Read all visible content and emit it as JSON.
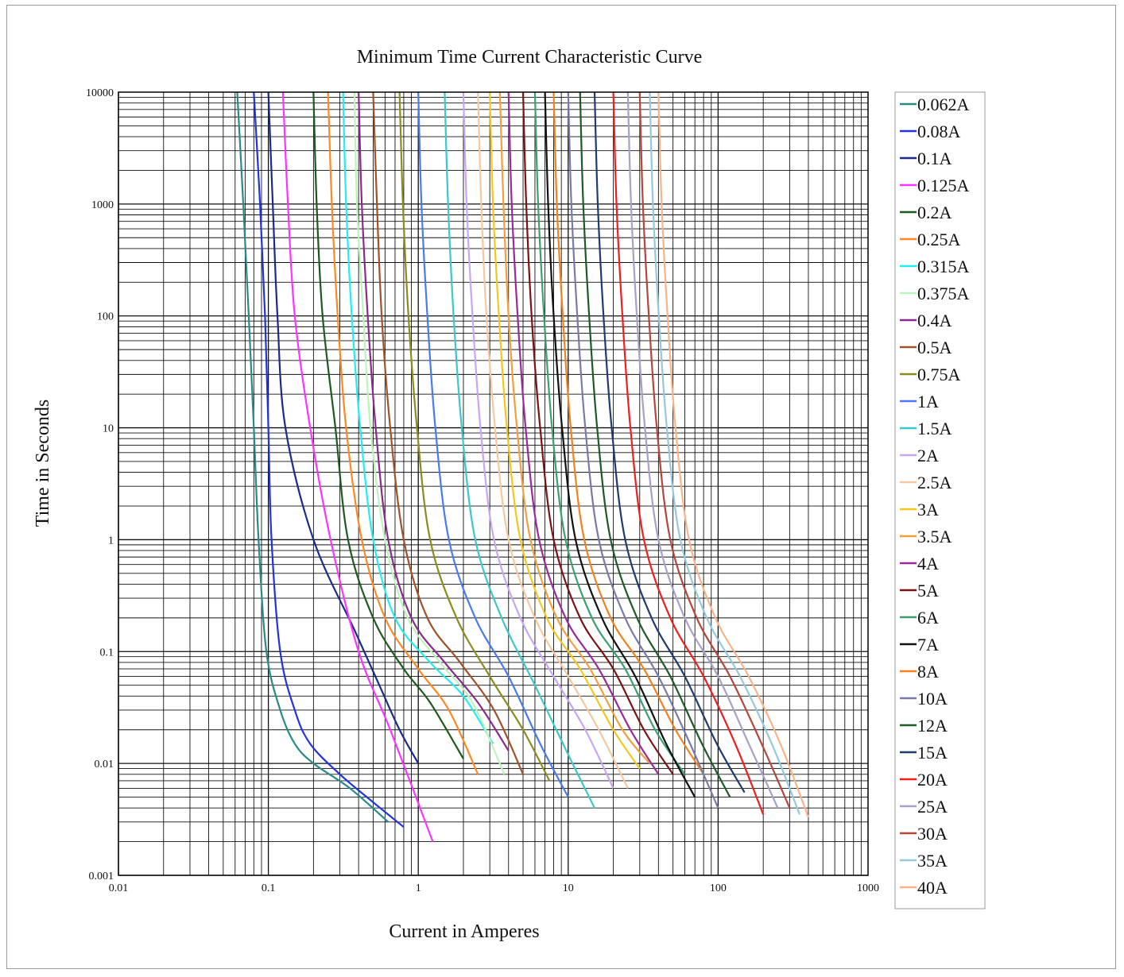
{
  "chart_data": {
    "type": "line",
    "title": "Minimum Time Current Characteristic Curve",
    "xlabel": "Current in Amperes",
    "ylabel": "Time in Seconds",
    "xscale": "log",
    "yscale": "log",
    "xlim": [
      0.01,
      1000
    ],
    "ylim": [
      0.001,
      10000
    ],
    "x_ticks": [
      0.01,
      0.1,
      1,
      10,
      100,
      1000
    ],
    "x_tick_labels": [
      "0.01",
      "0.1",
      "1",
      "10",
      "100",
      "1000"
    ],
    "y_ticks": [
      0.001,
      0.01,
      0.1,
      1,
      10,
      100,
      1000,
      10000
    ],
    "y_tick_labels": [
      "0.001",
      "0.01",
      "0.1",
      "1",
      "10",
      "100",
      "1000",
      "10000"
    ],
    "grid": true,
    "legend_position": "right",
    "series": [
      {
        "name": "0.062A",
        "color": "#2a8a86",
        "points": [
          [
            0.062,
            10000
          ],
          [
            0.068,
            1000
          ],
          [
            0.074,
            100
          ],
          [
            0.08,
            10
          ],
          [
            0.086,
            1
          ],
          [
            0.097,
            0.1
          ],
          [
            0.12,
            0.03
          ],
          [
            0.15,
            0.015
          ],
          [
            0.2,
            0.01
          ],
          [
            0.35,
            0.006
          ],
          [
            0.63,
            0.003
          ]
        ]
      },
      {
        "name": "0.08A",
        "color": "#2233dd",
        "points": [
          [
            0.08,
            10000
          ],
          [
            0.088,
            1000
          ],
          [
            0.095,
            100
          ],
          [
            0.1,
            10
          ],
          [
            0.105,
            1
          ],
          [
            0.12,
            0.1
          ],
          [
            0.15,
            0.03
          ],
          [
            0.19,
            0.015
          ],
          [
            0.3,
            0.008
          ],
          [
            0.5,
            0.0045
          ],
          [
            0.8,
            0.0027
          ]
        ]
      },
      {
        "name": "0.1A",
        "color": "#1c2a8a",
        "points": [
          [
            0.1,
            10000
          ],
          [
            0.107,
            1000
          ],
          [
            0.115,
            100
          ],
          [
            0.13,
            10
          ],
          [
            0.2,
            1
          ],
          [
            0.38,
            0.15
          ],
          [
            0.55,
            0.05
          ],
          [
            0.75,
            0.02
          ],
          [
            1,
            0.01
          ]
        ]
      },
      {
        "name": "0.125A",
        "color": "#ff33ff",
        "points": [
          [
            0.125,
            10000
          ],
          [
            0.135,
            1000
          ],
          [
            0.15,
            100
          ],
          [
            0.19,
            10
          ],
          [
            0.26,
            1
          ],
          [
            0.4,
            0.1
          ],
          [
            0.65,
            0.02
          ],
          [
            1.25,
            0.002
          ]
        ]
      },
      {
        "name": "0.2A",
        "color": "#1e5a1e",
        "points": [
          [
            0.2,
            10000
          ],
          [
            0.21,
            1000
          ],
          [
            0.23,
            100
          ],
          [
            0.28,
            10
          ],
          [
            0.34,
            1
          ],
          [
            0.5,
            0.2
          ],
          [
            0.8,
            0.07
          ],
          [
            1.2,
            0.035
          ],
          [
            2,
            0.011
          ]
        ]
      },
      {
        "name": "0.25A",
        "color": "#ff8822",
        "points": [
          [
            0.25,
            10000
          ],
          [
            0.265,
            1000
          ],
          [
            0.29,
            100
          ],
          [
            0.33,
            10
          ],
          [
            0.42,
            1
          ],
          [
            0.6,
            0.2
          ],
          [
            1,
            0.07
          ],
          [
            1.6,
            0.03
          ],
          [
            2.5,
            0.008
          ]
        ]
      },
      {
        "name": "0.315A",
        "color": "#22eeee",
        "points": [
          [
            0.315,
            10000
          ],
          [
            0.33,
            1000
          ],
          [
            0.36,
            100
          ],
          [
            0.41,
            10
          ],
          [
            0.5,
            1
          ],
          [
            0.7,
            0.2
          ],
          [
            1.2,
            0.08
          ],
          [
            2,
            0.04
          ],
          [
            3.15,
            0.015
          ]
        ]
      },
      {
        "name": "0.375A",
        "color": "#bff2bf",
        "points": [
          [
            0.375,
            10000
          ],
          [
            0.39,
            1000
          ],
          [
            0.43,
            100
          ],
          [
            0.48,
            10
          ],
          [
            0.6,
            1
          ],
          [
            0.85,
            0.2
          ],
          [
            1.4,
            0.08
          ],
          [
            2.3,
            0.035
          ],
          [
            3.75,
            0.008
          ]
        ]
      },
      {
        "name": "0.4A",
        "color": "#8c2a8c",
        "points": [
          [
            0.4,
            10000
          ],
          [
            0.42,
            1000
          ],
          [
            0.46,
            100
          ],
          [
            0.52,
            10
          ],
          [
            0.63,
            1
          ],
          [
            0.9,
            0.2
          ],
          [
            1.5,
            0.08
          ],
          [
            2.5,
            0.035
          ],
          [
            4,
            0.013
          ]
        ]
      },
      {
        "name": "0.5A",
        "color": "#a0522d",
        "points": [
          [
            0.5,
            10000
          ],
          [
            0.53,
            1000
          ],
          [
            0.57,
            100
          ],
          [
            0.65,
            10
          ],
          [
            0.8,
            1
          ],
          [
            1.15,
            0.2
          ],
          [
            1.9,
            0.08
          ],
          [
            3.2,
            0.03
          ],
          [
            5,
            0.008
          ]
        ]
      },
      {
        "name": "0.75A",
        "color": "#8c8c1e",
        "points": [
          [
            0.75,
            10000
          ],
          [
            0.79,
            1000
          ],
          [
            0.86,
            100
          ],
          [
            0.98,
            10
          ],
          [
            1.2,
            1
          ],
          [
            1.8,
            0.2
          ],
          [
            3,
            0.06
          ],
          [
            5,
            0.02
          ],
          [
            7.5,
            0.007
          ]
        ]
      },
      {
        "name": "1A",
        "color": "#4a7aee",
        "points": [
          [
            1,
            10000
          ],
          [
            1.05,
            1000
          ],
          [
            1.15,
            100
          ],
          [
            1.3,
            10
          ],
          [
            1.6,
            1
          ],
          [
            2.4,
            0.2
          ],
          [
            4,
            0.06
          ],
          [
            6.5,
            0.015
          ],
          [
            10,
            0.005
          ]
        ]
      },
      {
        "name": "1.5A",
        "color": "#3cc8c8",
        "points": [
          [
            1.5,
            10000
          ],
          [
            1.58,
            1000
          ],
          [
            1.72,
            100
          ],
          [
            1.95,
            10
          ],
          [
            2.4,
            1
          ],
          [
            3.6,
            0.2
          ],
          [
            6,
            0.05
          ],
          [
            10,
            0.012
          ],
          [
            15,
            0.004
          ]
        ]
      },
      {
        "name": "2A",
        "color": "#c8a6f2",
        "points": [
          [
            2,
            10000
          ],
          [
            2.1,
            1000
          ],
          [
            2.3,
            100
          ],
          [
            2.6,
            10
          ],
          [
            3.2,
            1
          ],
          [
            4.8,
            0.2
          ],
          [
            8,
            0.06
          ],
          [
            13,
            0.02
          ],
          [
            20,
            0.006
          ]
        ]
      },
      {
        "name": "2.5A",
        "color": "#f5c8a0",
        "points": [
          [
            2.5,
            10000
          ],
          [
            2.63,
            1000
          ],
          [
            2.85,
            100
          ],
          [
            3.25,
            10
          ],
          [
            4,
            1
          ],
          [
            6,
            0.2
          ],
          [
            10,
            0.06
          ],
          [
            16,
            0.02
          ],
          [
            25,
            0.006
          ]
        ]
      },
      {
        "name": "3A",
        "color": "#f2c81e",
        "points": [
          [
            3,
            10000
          ],
          [
            3.15,
            1000
          ],
          [
            3.45,
            100
          ],
          [
            3.9,
            10
          ],
          [
            4.8,
            1
          ],
          [
            7.2,
            0.2
          ],
          [
            12,
            0.07
          ],
          [
            20,
            0.02
          ],
          [
            30,
            0.009
          ]
        ]
      },
      {
        "name": "3.5A",
        "color": "#f2a03c",
        "points": [
          [
            3.5,
            10000
          ],
          [
            3.7,
            1000
          ],
          [
            4,
            100
          ],
          [
            4.55,
            10
          ],
          [
            5.6,
            1
          ],
          [
            8.4,
            0.2
          ],
          [
            14,
            0.07
          ],
          [
            23,
            0.02
          ],
          [
            35,
            0.01
          ]
        ]
      },
      {
        "name": "4A",
        "color": "#9a2a9a",
        "points": [
          [
            4,
            10000
          ],
          [
            4.2,
            1000
          ],
          [
            4.6,
            100
          ],
          [
            5.2,
            10
          ],
          [
            6.4,
            1
          ],
          [
            9.6,
            0.2
          ],
          [
            16,
            0.07
          ],
          [
            26,
            0.02
          ],
          [
            40,
            0.008
          ]
        ]
      },
      {
        "name": "5A",
        "color": "#7a1414",
        "points": [
          [
            5,
            10000
          ],
          [
            5.25,
            1000
          ],
          [
            5.7,
            100
          ],
          [
            6.5,
            10
          ],
          [
            8,
            1
          ],
          [
            12,
            0.2
          ],
          [
            20,
            0.07
          ],
          [
            32,
            0.02
          ],
          [
            50,
            0.008
          ]
        ]
      },
      {
        "name": "6A",
        "color": "#3ca06e",
        "points": [
          [
            6,
            10000
          ],
          [
            6.3,
            1000
          ],
          [
            6.9,
            100
          ],
          [
            7.8,
            10
          ],
          [
            9.6,
            1
          ],
          [
            14.4,
            0.2
          ],
          [
            24,
            0.07
          ],
          [
            38,
            0.02
          ],
          [
            60,
            0.008
          ]
        ]
      },
      {
        "name": "7A",
        "color": "#111111",
        "points": [
          [
            7,
            10000
          ],
          [
            7.35,
            1000
          ],
          [
            8,
            100
          ],
          [
            9.1,
            10
          ],
          [
            11.2,
            1
          ],
          [
            16.8,
            0.2
          ],
          [
            28,
            0.06
          ],
          [
            45,
            0.015
          ],
          [
            70,
            0.005
          ]
        ]
      },
      {
        "name": "8A",
        "color": "#f2821e",
        "points": [
          [
            8,
            10000
          ],
          [
            8.4,
            1000
          ],
          [
            9.2,
            100
          ],
          [
            10.4,
            10
          ],
          [
            12.8,
            1
          ],
          [
            19.2,
            0.2
          ],
          [
            32,
            0.07
          ],
          [
            52,
            0.02
          ],
          [
            80,
            0.008
          ]
        ]
      },
      {
        "name": "10A",
        "color": "#7a7aaa",
        "points": [
          [
            10,
            10000
          ],
          [
            10.5,
            1000
          ],
          [
            11.5,
            100
          ],
          [
            13,
            10
          ],
          [
            16,
            1
          ],
          [
            24,
            0.2
          ],
          [
            40,
            0.06
          ],
          [
            65,
            0.015
          ],
          [
            100,
            0.004
          ]
        ]
      },
      {
        "name": "12A",
        "color": "#1e5a28",
        "points": [
          [
            12,
            10000
          ],
          [
            12.6,
            1000
          ],
          [
            13.8,
            100
          ],
          [
            15.6,
            10
          ],
          [
            19.2,
            1
          ],
          [
            28.8,
            0.2
          ],
          [
            48,
            0.06
          ],
          [
            78,
            0.015
          ],
          [
            120,
            0.005
          ]
        ]
      },
      {
        "name": "15A",
        "color": "#1e3c6e",
        "points": [
          [
            15,
            10000
          ],
          [
            15.75,
            1000
          ],
          [
            17.2,
            100
          ],
          [
            19.5,
            10
          ],
          [
            24,
            1
          ],
          [
            36,
            0.2
          ],
          [
            60,
            0.06
          ],
          [
            98,
            0.015
          ],
          [
            150,
            0.0055
          ]
        ]
      },
      {
        "name": "20A",
        "color": "#f01e1e",
        "points": [
          [
            20,
            10000
          ],
          [
            21,
            1000
          ],
          [
            23,
            100
          ],
          [
            26,
            10
          ],
          [
            32,
            1
          ],
          [
            48,
            0.2
          ],
          [
            80,
            0.06
          ],
          [
            130,
            0.015
          ],
          [
            200,
            0.0035
          ]
        ]
      },
      {
        "name": "25A",
        "color": "#a8a0c8",
        "points": [
          [
            25,
            10000
          ],
          [
            26.25,
            1000
          ],
          [
            28.7,
            100
          ],
          [
            32.5,
            10
          ],
          [
            40,
            1
          ],
          [
            60,
            0.2
          ],
          [
            100,
            0.06
          ],
          [
            160,
            0.015
          ],
          [
            250,
            0.004
          ]
        ]
      },
      {
        "name": "30A",
        "color": "#b4463c",
        "points": [
          [
            30,
            10000
          ],
          [
            31.5,
            1000
          ],
          [
            34.5,
            100
          ],
          [
            39,
            10
          ],
          [
            48,
            1
          ],
          [
            72,
            0.2
          ],
          [
            120,
            0.06
          ],
          [
            195,
            0.015
          ],
          [
            300,
            0.004
          ]
        ]
      },
      {
        "name": "35A",
        "color": "#96c8dc",
        "points": [
          [
            35,
            10000
          ],
          [
            36.75,
            1000
          ],
          [
            40.2,
            100
          ],
          [
            45.5,
            10
          ],
          [
            56,
            1
          ],
          [
            84,
            0.2
          ],
          [
            140,
            0.06
          ],
          [
            228,
            0.015
          ],
          [
            350,
            0.0035
          ]
        ]
      },
      {
        "name": "40A",
        "color": "#f5b48c",
        "points": [
          [
            40,
            10000
          ],
          [
            42,
            1000
          ],
          [
            46,
            100
          ],
          [
            52,
            10
          ],
          [
            64,
            1
          ],
          [
            96,
            0.2
          ],
          [
            160,
            0.06
          ],
          [
            260,
            0.015
          ],
          [
            400,
            0.0033
          ]
        ]
      }
    ]
  }
}
